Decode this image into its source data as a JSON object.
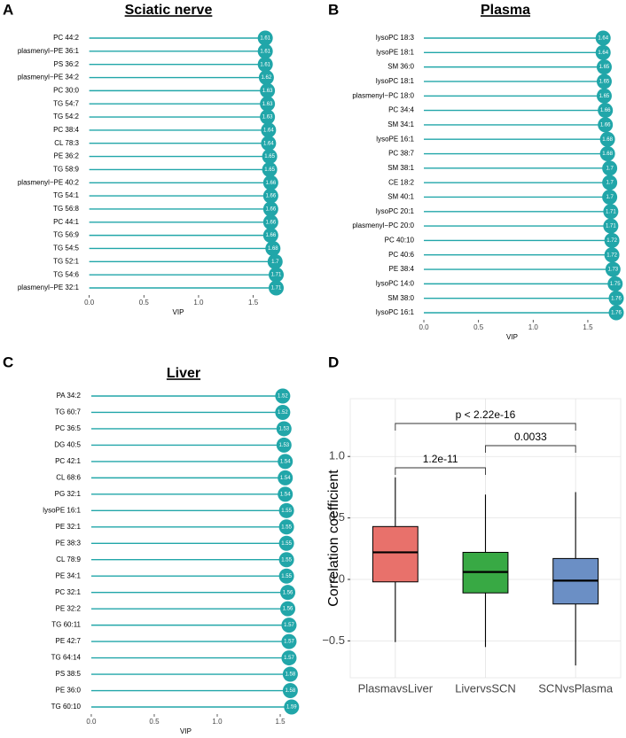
{
  "chart_data": [
    {
      "type": "lollipop",
      "panel": "A",
      "title": "Sciatic nerve",
      "x_label": "VIP",
      "color": "#21a6a9",
      "categories": [
        "PC 44:2",
        "plasmenyl−PE 36:1",
        "PS 36:2",
        "plasmenyl−PE 34:2",
        "PC 30:0",
        "TG 54:7",
        "TG 54:2",
        "PC 38:4",
        "CL 78:3",
        "PE 36:2",
        "TG 58:9",
        "plasmenyl−PE 40:2",
        "TG 54:1",
        "TG 56:8",
        "PC 44:1",
        "TG 56:9",
        "TG 54:5",
        "TG 52:1",
        "TG 54:6",
        "plasmenyl−PE 32:1"
      ],
      "values": [
        1.61,
        1.61,
        1.61,
        1.62,
        1.63,
        1.63,
        1.63,
        1.64,
        1.64,
        1.65,
        1.65,
        1.66,
        1.66,
        1.66,
        1.66,
        1.66,
        1.68,
        1.7,
        1.71,
        1.71
      ],
      "xlim": [
        -0.07,
        1.86
      ],
      "xticks": [
        {
          "value": 0,
          "label": "0.0"
        },
        0.5,
        {
          "value": 1,
          "label": "1.0"
        },
        1.5
      ]
    },
    {
      "type": "lollipop",
      "panel": "B",
      "title": "Plasma",
      "x_label": "VIP",
      "color": "#21a6a9",
      "categories": [
        "lysoPC 18:3",
        "lysoPE 18:1",
        "SM 36:0",
        "lysoPC 18:1",
        "plasmenyl−PC 18:0",
        "PC 34:4",
        "SM 34:1",
        "lysoPE 16:1",
        "PC 38:7",
        "SM 38:1",
        "CE 18:2",
        "SM 40:1",
        "lysoPC 20:1",
        "plasmenyl−PC 20:0",
        "PC 40:10",
        "PC 40:6",
        "PE 38:4",
        "lysoPC 14:0",
        "SM 38:0",
        "lysoPC 16:1"
      ],
      "values": [
        1.64,
        1.64,
        1.65,
        1.65,
        1.65,
        1.66,
        1.66,
        1.68,
        1.68,
        1.7,
        1.7,
        1.7,
        1.71,
        1.71,
        1.72,
        1.72,
        1.73,
        1.75,
        1.76,
        1.76
      ],
      "xlim": [
        -0.065,
        1.841
      ],
      "xticks": [
        {
          "value": 0,
          "label": "0.0"
        },
        0.5,
        {
          "value": 1,
          "label": "1.0"
        },
        1.5
      ]
    },
    {
      "type": "lollipop",
      "panel": "C",
      "title": "Liver",
      "x_label": "VIP",
      "color": "#21a6a9",
      "categories": [
        "PA 34:2",
        "TG 60:7",
        "PC 36:5",
        "DG 40:5",
        "PC 42:1",
        "CL 68:6",
        "PG 32:1",
        "lysoPE 16:1",
        "PE 32:1",
        "PE 38:3",
        "CL 78:9",
        "PE 34:1",
        "PC 32:1",
        "PE 32:2",
        "TG 60:11",
        "PE 42:7",
        "TG 64:14",
        "PS 38:5",
        "PE 36:0",
        "TG 60:10"
      ],
      "values": [
        1.52,
        1.52,
        1.53,
        1.53,
        1.54,
        1.54,
        1.54,
        1.55,
        1.55,
        1.55,
        1.55,
        1.55,
        1.56,
        1.56,
        1.57,
        1.57,
        1.57,
        1.58,
        1.58,
        1.59
      ],
      "xlim": [
        -0.063,
        1.704
      ],
      "xticks": [
        {
          "value": 0,
          "label": "0.0"
        },
        0.5,
        {
          "value": 1,
          "label": "1.0"
        },
        1.5
      ]
    },
    {
      "type": "box",
      "panel": "D",
      "y_label": "Correlation coefficient",
      "categories": [
        "PlasmavsLiver",
        "LivervsSCN",
        "SCNvsPlasma"
      ],
      "colors": [
        "#e8716b",
        "#38a944",
        "#6b8fc5"
      ],
      "whisker_low": [
        -0.51,
        -0.55,
        -0.7
      ],
      "q1": [
        -0.02,
        -0.11,
        -0.2
      ],
      "median": [
        0.22,
        0.06,
        -0.01
      ],
      "q3": [
        0.43,
        0.22,
        0.17
      ],
      "whisker_high": [
        0.83,
        0.69,
        0.71
      ],
      "ylim": [
        -0.8,
        1.47
      ],
      "yticks": [
        {
          "value": -0.5,
          "label": "−0.5"
        },
        {
          "value": 0,
          "label": "0.0"
        },
        0.5,
        {
          "value": 1,
          "label": "1.0"
        }
      ],
      "grid": true,
      "comparisons": [
        {
          "groups": [
            "PlasmavsLiver",
            "SCNvsPlasma"
          ],
          "label": "p < 2.22e-16"
        },
        {
          "groups": [
            "LivervsSCN",
            "SCNvsPlasma"
          ],
          "label": "0.0033"
        },
        {
          "groups": [
            "PlasmavsLiver",
            "LivervsSCN"
          ],
          "label": "1.2e-11"
        }
      ]
    }
  ]
}
